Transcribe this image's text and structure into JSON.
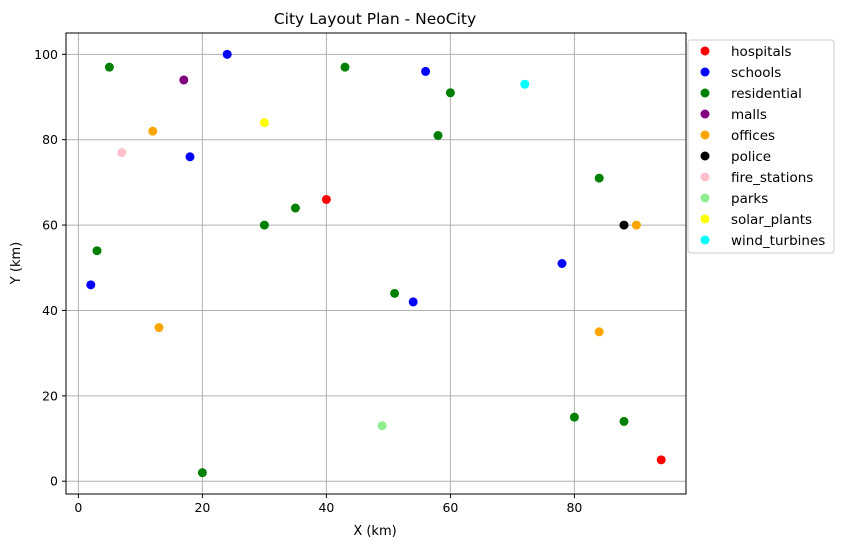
{
  "chart_data": {
    "type": "scatter",
    "title": "City Layout Plan - NeoCity",
    "xlabel": "X (km)",
    "ylabel": "Y (km)",
    "xlim": [
      -2,
      98
    ],
    "ylim": [
      -3,
      105
    ],
    "xticks": [
      0,
      20,
      40,
      60,
      80
    ],
    "yticks": [
      0,
      20,
      40,
      60,
      80,
      100
    ],
    "grid": true,
    "legend_position": "outside-right",
    "series": [
      {
        "name": "hospitals",
        "color": "#ff0000",
        "points": [
          [
            40,
            66
          ],
          [
            94,
            5
          ]
        ]
      },
      {
        "name": "schools",
        "color": "#0000ff",
        "points": [
          [
            2,
            46
          ],
          [
            18,
            76
          ],
          [
            24,
            100
          ],
          [
            54,
            42
          ],
          [
            56,
            96
          ],
          [
            78,
            51
          ]
        ]
      },
      {
        "name": "residential",
        "color": "#008000",
        "points": [
          [
            3,
            54
          ],
          [
            5,
            97
          ],
          [
            20,
            2
          ],
          [
            30,
            60
          ],
          [
            35,
            64
          ],
          [
            43,
            97
          ],
          [
            51,
            44
          ],
          [
            58,
            81
          ],
          [
            60,
            91
          ],
          [
            80,
            15
          ],
          [
            84,
            71
          ],
          [
            88,
            14
          ]
        ]
      },
      {
        "name": "malls",
        "color": "#800080",
        "points": [
          [
            17,
            94
          ]
        ]
      },
      {
        "name": "offices",
        "color": "#ffa500",
        "points": [
          [
            12,
            82
          ],
          [
            13,
            36
          ],
          [
            84,
            35
          ],
          [
            90,
            60
          ]
        ]
      },
      {
        "name": "police",
        "color": "#000000",
        "points": [
          [
            88,
            60
          ]
        ]
      },
      {
        "name": "fire_stations",
        "color": "#ffc0cb",
        "points": [
          [
            7,
            77
          ]
        ]
      },
      {
        "name": "parks",
        "color": "#90ee90",
        "points": [
          [
            49,
            13
          ]
        ]
      },
      {
        "name": "solar_plants",
        "color": "#ffff00",
        "points": [
          [
            30,
            84
          ]
        ]
      },
      {
        "name": "wind_turbines",
        "color": "#00ffff",
        "points": [
          [
            72,
            93
          ]
        ]
      }
    ]
  }
}
